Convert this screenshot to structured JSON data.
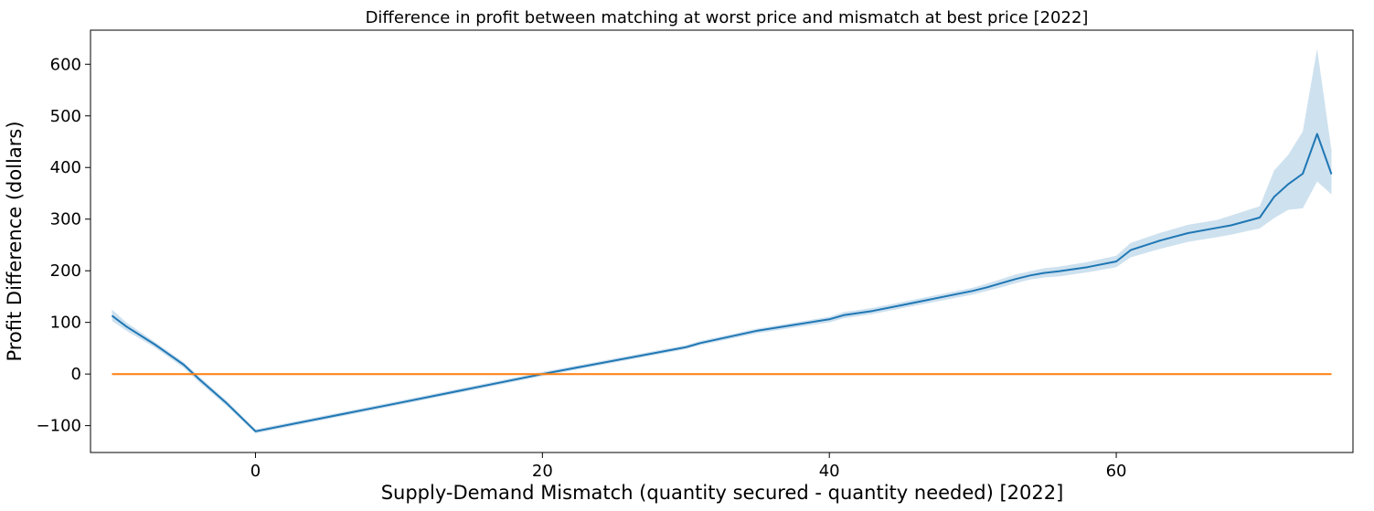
{
  "chart_data": {
    "type": "line",
    "title": "Difference in profit between matching at worst price and mismatch at best price [2022]",
    "xlabel": "Supply-Demand Mismatch (quantity secured - quantity needed) [2022]",
    "ylabel": "Profit Difference (dollars)",
    "xlim": [
      -11.5,
      76.5
    ],
    "ylim": [
      -152,
      666
    ],
    "xticks": [
      0,
      20,
      40,
      60
    ],
    "xtick_labels": [
      "0",
      "20",
      "40",
      "60"
    ],
    "yticks": [
      -100,
      0,
      100,
      200,
      300,
      400,
      500,
      600
    ],
    "ytick_labels": [
      "−100",
      "0",
      "100",
      "200",
      "300",
      "400",
      "500",
      "600"
    ],
    "grid": false,
    "series": [
      {
        "color": "#1f77b4",
        "band_color": "#1f77b4",
        "x": [
          -10,
          -9,
          -7,
          -5,
          -4,
          -2,
          0,
          10,
          20,
          30,
          31,
          35,
          40,
          41,
          43,
          45,
          50,
          51,
          52,
          53,
          54,
          55,
          56,
          58,
          60,
          61,
          63,
          65,
          67,
          68,
          70,
          71,
          72,
          73,
          74,
          75
        ],
        "y": [
          113,
          92,
          57,
          18,
          -8,
          -57,
          -111,
          -56,
          0,
          52,
          60,
          84,
          106,
          114,
          122,
          133,
          161,
          168,
          176,
          184,
          191,
          196,
          199,
          207,
          218,
          240,
          258,
          273,
          283,
          288,
          303,
          343,
          368,
          388,
          465,
          387
        ],
        "lower": [
          103,
          84,
          51,
          12,
          -14,
          -62,
          -115,
          -60,
          -4,
          48,
          56,
          79,
          100,
          108,
          116,
          127,
          154,
          161,
          168,
          176,
          183,
          187,
          189,
          197,
          207,
          226,
          242,
          256,
          265,
          270,
          282,
          302,
          318,
          321,
          373,
          348
        ],
        "upper": [
          125,
          100,
          62,
          23,
          -3,
          -52,
          -107,
          -52,
          4,
          56,
          64,
          88,
          111,
          120,
          128,
          139,
          167,
          175,
          184,
          193,
          199,
          205,
          208,
          217,
          229,
          254,
          273,
          289,
          298,
          307,
          325,
          394,
          425,
          470,
          630,
          433
        ]
      },
      {
        "color": "#ff7f0e",
        "x": [
          -10,
          75
        ],
        "y": [
          0,
          0
        ]
      }
    ]
  }
}
